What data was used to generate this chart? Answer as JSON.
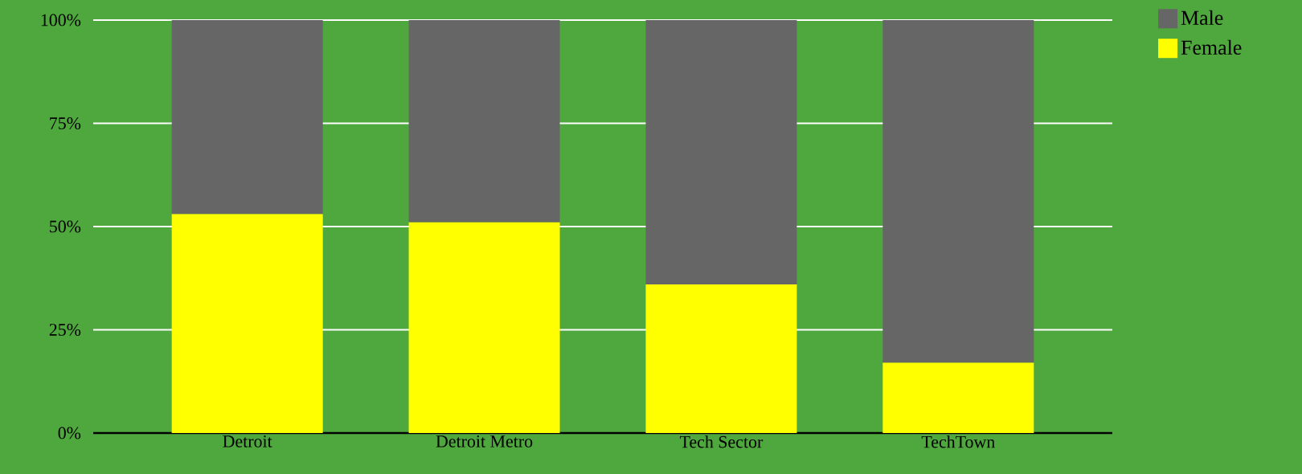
{
  "chart_data": {
    "type": "bar",
    "stacked": true,
    "categories": [
      "Detroit",
      "Detroit Metro",
      "Tech Sector",
      "TechTown"
    ],
    "series": [
      {
        "name": "Female",
        "color": "#ffff00",
        "values": [
          53,
          51,
          36,
          17
        ]
      },
      {
        "name": "Male",
        "color": "#666666",
        "values": [
          47,
          49,
          64,
          83
        ]
      }
    ],
    "ylim": [
      0,
      100
    ],
    "yticks": [
      {
        "value": 0,
        "label": "0%"
      },
      {
        "value": 25,
        "label": "25%"
      },
      {
        "value": 50,
        "label": "50%"
      },
      {
        "value": 75,
        "label": "75%"
      },
      {
        "value": 100,
        "label": "100%"
      }
    ],
    "grid": "y",
    "legend": "top right"
  }
}
